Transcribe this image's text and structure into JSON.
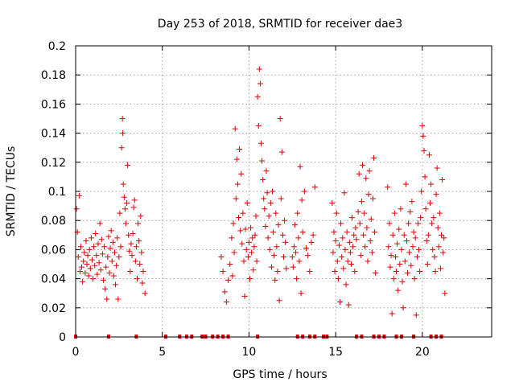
{
  "chart_data": {
    "type": "scatter",
    "title": "Day 253 of 2018, SRMTID for receiver dae3",
    "xlabel": "GPS time / hours",
    "ylabel": "SRMTID / TECUs",
    "xlim": [
      0,
      24
    ],
    "ylim": [
      0,
      0.2
    ],
    "x_ticks": [
      0,
      5,
      10,
      15,
      20
    ],
    "y_ticks": [
      0,
      0.02,
      0.04,
      0.06,
      0.08,
      0.1,
      0.12,
      0.14,
      0.16,
      0.18,
      0.2
    ],
    "x_tick_labels": [
      "0",
      "5",
      "10",
      "15",
      "20"
    ],
    "y_tick_labels": [
      "0",
      "0.02",
      "0.04",
      "0.06",
      "0.08",
      "0.1",
      "0.12",
      "0.14",
      "0.16",
      "0.18",
      "0.2"
    ],
    "grid": true,
    "marker": "+",
    "color": "#e00000",
    "series": [
      {
        "name": "SRMTID",
        "points": [
          [
            0.05,
            0.088
          ],
          [
            0.1,
            0.072
          ],
          [
            0.15,
            0.055
          ],
          [
            0.2,
            0.097
          ],
          [
            0.25,
            0.045
          ],
          [
            0.3,
            0.062
          ],
          [
            0.35,
            0.048
          ],
          [
            0.4,
            0.038
          ],
          [
            0.45,
            0.052
          ],
          [
            0.5,
            0.058
          ],
          [
            0.55,
            0.044
          ],
          [
            0.6,
            0.066
          ],
          [
            0.65,
            0.05
          ],
          [
            0.7,
            0.056
          ],
          [
            0.75,
            0.042
          ],
          [
            0.8,
            0.06
          ],
          [
            0.85,
            0.047
          ],
          [
            0.9,
            0.068
          ],
          [
            0.95,
            0.053
          ],
          [
            1.0,
            0.04
          ],
          [
            1.05,
            0.062
          ],
          [
            1.1,
            0.049
          ],
          [
            1.15,
            0.071
          ],
          [
            1.2,
            0.056
          ],
          [
            1.25,
            0.043
          ],
          [
            1.3,
            0.064
          ],
          [
            1.35,
            0.051
          ],
          [
            1.4,
            0.078
          ],
          [
            1.45,
            0.046
          ],
          [
            1.5,
            0.067
          ],
          [
            1.55,
            0.057
          ],
          [
            1.6,
            0.039
          ],
          [
            1.65,
            0.062
          ],
          [
            1.7,
            0.033
          ],
          [
            1.75,
            0.048
          ],
          [
            1.8,
            0.026
          ],
          [
            1.85,
            0.055
          ],
          [
            1.9,
            0.069
          ],
          [
            1.95,
            0.044
          ],
          [
            2.0,
            0.061
          ],
          [
            2.05,
            0.073
          ],
          [
            2.1,
            0.052
          ],
          [
            2.15,
            0.065
          ],
          [
            2.2,
            0.042
          ],
          [
            2.25,
            0.058
          ],
          [
            2.3,
            0.036
          ],
          [
            2.35,
            0.049
          ],
          [
            2.4,
            0.068
          ],
          [
            2.45,
            0.026
          ],
          [
            2.5,
            0.055
          ],
          [
            2.55,
            0.085
          ],
          [
            2.6,
            0.062
          ],
          [
            2.65,
            0.13
          ],
          [
            2.7,
            0.15
          ],
          [
            2.72,
            0.14
          ],
          [
            2.75,
            0.105
          ],
          [
            2.8,
            0.096
          ],
          [
            2.85,
            0.088
          ],
          [
            2.9,
            0.078
          ],
          [
            2.95,
            0.092
          ],
          [
            3.0,
            0.118
          ],
          [
            3.05,
            0.07
          ],
          [
            3.1,
            0.059
          ],
          [
            3.15,
            0.045
          ],
          [
            3.2,
            0.064
          ],
          [
            3.25,
            0.056
          ],
          [
            3.3,
            0.071
          ],
          [
            3.35,
            0.089
          ],
          [
            3.4,
            0.094
          ],
          [
            3.45,
            0.052
          ],
          [
            3.5,
            0.062
          ],
          [
            3.55,
            0.04
          ],
          [
            3.6,
            0.078
          ],
          [
            3.65,
            0.066
          ],
          [
            3.7,
            0.05
          ],
          [
            3.75,
            0.083
          ],
          [
            3.8,
            0.058
          ],
          [
            3.85,
            0.037
          ],
          [
            3.9,
            0.045
          ],
          [
            4.0,
            0.03
          ],
          [
            8.4,
            0.055
          ],
          [
            8.5,
            0.045
          ],
          [
            8.6,
            0.031
          ],
          [
            8.7,
            0.024
          ],
          [
            8.8,
            0.039
          ],
          [
            8.9,
            0.05
          ],
          [
            9.0,
            0.068
          ],
          [
            9.05,
            0.042
          ],
          [
            9.1,
            0.078
          ],
          [
            9.15,
            0.058
          ],
          [
            9.2,
            0.143
          ],
          [
            9.25,
            0.095
          ],
          [
            9.3,
            0.122
          ],
          [
            9.35,
            0.105
          ],
          [
            9.4,
            0.082
          ],
          [
            9.45,
            0.129
          ],
          [
            9.5,
            0.073
          ],
          [
            9.55,
            0.112
          ],
          [
            9.6,
            0.064
          ],
          [
            9.65,
            0.085
          ],
          [
            9.7,
            0.052
          ],
          [
            9.75,
            0.028
          ],
          [
            9.8,
            0.074
          ],
          [
            9.85,
            0.06
          ],
          [
            9.9,
            0.092
          ],
          [
            9.95,
            0.055
          ],
          [
            10.0,
            0.065
          ],
          [
            10.05,
            0.04
          ],
          [
            10.1,
            0.075
          ],
          [
            10.15,
            0.058
          ],
          [
            10.2,
            0.068
          ],
          [
            10.25,
            0.046
          ],
          [
            10.3,
            0.062
          ],
          [
            10.35,
            0.07
          ],
          [
            10.4,
            0.083
          ],
          [
            10.45,
            0.052
          ],
          [
            10.5,
            0.165
          ],
          [
            10.55,
            0.145
          ],
          [
            10.6,
            0.184
          ],
          [
            10.65,
            0.174
          ],
          [
            10.7,
            0.133
          ],
          [
            10.75,
            0.121
          ],
          [
            10.8,
            0.108
          ],
          [
            10.85,
            0.095
          ],
          [
            10.9,
            0.088
          ],
          [
            10.95,
            0.076
          ],
          [
            11.0,
            0.114
          ],
          [
            11.05,
            0.099
          ],
          [
            11.1,
            0.068
          ],
          [
            11.15,
            0.083
          ],
          [
            11.2,
            0.06
          ],
          [
            11.25,
            0.092
          ],
          [
            11.3,
            0.048
          ],
          [
            11.35,
            0.1
          ],
          [
            11.4,
            0.072
          ],
          [
            11.45,
            0.056
          ],
          [
            11.5,
            0.039
          ],
          [
            11.55,
            0.085
          ],
          [
            11.6,
            0.062
          ],
          [
            11.65,
            0.045
          ],
          [
            11.7,
            0.077
          ],
          [
            11.75,
            0.025
          ],
          [
            11.8,
            0.15
          ],
          [
            11.85,
            0.095
          ],
          [
            11.9,
            0.127
          ],
          [
            11.95,
            0.07
          ],
          [
            12.0,
            0.055
          ],
          [
            12.05,
            0.08
          ],
          [
            12.1,
            0.065
          ],
          [
            12.15,
            0.047
          ],
          [
            12.5,
            0.055
          ],
          [
            12.55,
            0.048
          ],
          [
            12.6,
            0.062
          ],
          [
            12.65,
            0.077
          ],
          [
            12.7,
            0.058
          ],
          [
            12.75,
            0.04
          ],
          [
            12.8,
            0.085
          ],
          [
            12.85,
            0.068
          ],
          [
            12.9,
            0.052
          ],
          [
            12.95,
            0.117
          ],
          [
            13.0,
            0.03
          ],
          [
            13.05,
            0.094
          ],
          [
            13.1,
            0.072
          ],
          [
            13.2,
            0.1
          ],
          [
            13.3,
            0.061
          ],
          [
            13.4,
            0.056
          ],
          [
            13.5,
            0.045
          ],
          [
            13.6,
            0.065
          ],
          [
            13.7,
            0.07
          ],
          [
            13.8,
            0.103
          ],
          [
            14.8,
            0.092
          ],
          [
            14.85,
            0.058
          ],
          [
            14.9,
            0.072
          ],
          [
            14.95,
            0.045
          ],
          [
            15.0,
            0.066
          ],
          [
            15.05,
            0.085
          ],
          [
            15.1,
            0.052
          ],
          [
            15.15,
            0.04
          ],
          [
            15.2,
            0.063
          ],
          [
            15.25,
            0.024
          ],
          [
            15.3,
            0.078
          ],
          [
            15.35,
            0.055
          ],
          [
            15.4,
            0.068
          ],
          [
            15.45,
            0.047
          ],
          [
            15.5,
            0.099
          ],
          [
            15.55,
            0.06
          ],
          [
            15.6,
            0.036
          ],
          [
            15.65,
            0.072
          ],
          [
            15.7,
            0.052
          ],
          [
            15.75,
            0.022
          ],
          [
            15.8,
            0.065
          ],
          [
            15.85,
            0.058
          ],
          [
            15.9,
            0.05
          ],
          [
            15.95,
            0.082
          ],
          [
            16.0,
            0.062
          ],
          [
            16.05,
            0.07
          ],
          [
            16.1,
            0.045
          ],
          [
            16.15,
            0.075
          ],
          [
            16.2,
            0.067
          ],
          [
            16.3,
            0.086
          ],
          [
            16.35,
            0.112
          ],
          [
            16.4,
            0.078
          ],
          [
            16.45,
            0.056
          ],
          [
            16.5,
            0.093
          ],
          [
            16.55,
            0.118
          ],
          [
            16.6,
            0.07
          ],
          [
            16.65,
            0.085
          ],
          [
            16.7,
            0.062
          ],
          [
            16.75,
            0.109
          ],
          [
            16.8,
            0.075
          ],
          [
            16.85,
            0.052
          ],
          [
            16.9,
            0.098
          ],
          [
            16.95,
            0.114
          ],
          [
            17.0,
            0.066
          ],
          [
            17.05,
            0.081
          ],
          [
            17.1,
            0.058
          ],
          [
            17.15,
            0.095
          ],
          [
            17.2,
            0.123
          ],
          [
            17.25,
            0.072
          ],
          [
            17.3,
            0.044
          ],
          [
            18.0,
            0.103
          ],
          [
            18.05,
            0.062
          ],
          [
            18.1,
            0.078
          ],
          [
            18.15,
            0.048
          ],
          [
            18.2,
            0.056
          ],
          [
            18.25,
            0.016
          ],
          [
            18.3,
            0.07
          ],
          [
            18.35,
            0.04
          ],
          [
            18.4,
            0.085
          ],
          [
            18.45,
            0.055
          ],
          [
            18.5,
            0.045
          ],
          [
            18.55,
            0.064
          ],
          [
            18.6,
            0.032
          ],
          [
            18.65,
            0.074
          ],
          [
            18.7,
            0.05
          ],
          [
            18.75,
            0.088
          ],
          [
            18.8,
            0.06
          ],
          [
            18.85,
            0.038
          ],
          [
            18.9,
            0.02
          ],
          [
            18.95,
            0.07
          ],
          [
            19.0,
            0.052
          ],
          [
            19.05,
            0.105
          ],
          [
            19.1,
            0.066
          ],
          [
            19.15,
            0.044
          ],
          [
            19.2,
            0.078
          ],
          [
            19.25,
            0.058
          ],
          [
            19.3,
            0.086
          ],
          [
            19.35,
            0.049
          ],
          [
            19.4,
            0.093
          ],
          [
            19.45,
            0.062
          ],
          [
            19.5,
            0.072
          ],
          [
            19.55,
            0.04
          ],
          [
            19.6,
            0.068
          ],
          [
            19.65,
            0.015
          ],
          [
            19.7,
            0.055
          ],
          [
            19.75,
            0.078
          ],
          [
            19.8,
            0.06
          ],
          [
            19.85,
            0.045
          ],
          [
            19.9,
            0.082
          ],
          [
            19.95,
            0.1
          ],
          [
            20.0,
            0.145
          ],
          [
            20.05,
            0.138
          ],
          [
            20.1,
            0.128
          ],
          [
            20.15,
            0.11
          ],
          [
            20.2,
            0.088
          ],
          [
            20.25,
            0.066
          ],
          [
            20.3,
            0.05
          ],
          [
            20.35,
            0.07
          ],
          [
            20.4,
            0.125
          ],
          [
            20.45,
            0.092
          ],
          [
            20.5,
            0.105
          ],
          [
            20.55,
            0.078
          ],
          [
            20.6,
            0.06
          ],
          [
            20.65,
            0.082
          ],
          [
            20.7,
            0.055
          ],
          [
            20.75,
            0.045
          ],
          [
            20.8,
            0.098
          ],
          [
            20.85,
            0.116
          ],
          [
            20.9,
            0.075
          ],
          [
            20.95,
            0.062
          ],
          [
            21.0,
            0.085
          ],
          [
            21.05,
            0.047
          ],
          [
            21.1,
            0.07
          ],
          [
            21.15,
            0.108
          ],
          [
            21.2,
            0.058
          ],
          [
            21.25,
            0.068
          ],
          [
            21.3,
            0.03
          ]
        ]
      }
    ],
    "zero_markers_x": [
      0,
      1.9,
      3.5,
      5.2,
      6.0,
      6.4,
      6.7,
      7.3,
      7.5,
      7.9,
      8.2,
      8.5,
      8.8,
      10.5,
      12.8,
      13.1,
      13.5,
      13.8,
      14.3,
      14.5,
      16.2,
      16.5,
      17.2,
      17.5,
      17.8,
      18.5,
      18.8,
      19.5,
      20.5,
      20.8,
      21.1
    ]
  }
}
